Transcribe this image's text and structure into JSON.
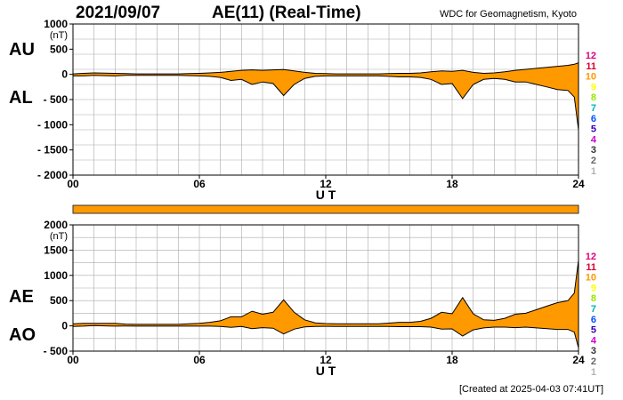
{
  "header": {
    "date": "2021/09/07",
    "title": "AE(11) (Real-Time)",
    "org": "WDC for Geomagnetism, Kyoto",
    "created": "[Created at 2025-04-03 07:41UT]"
  },
  "level_scale": {
    "labels": [
      "12",
      "11",
      "10",
      "9",
      "8",
      "7",
      "6",
      "5",
      "4",
      "3",
      "2",
      "1"
    ],
    "colors": [
      "#e0007b",
      "#d8002c",
      "#ff9900",
      "#ffff00",
      "#99e600",
      "#00b3b3",
      "#0050ff",
      "#3300b3",
      "#cc00cc",
      "#333333",
      "#666666",
      "#b3b3b3"
    ]
  },
  "colors": {
    "fill": "#ff9900",
    "line": "#000000",
    "bar": "#ff9900",
    "grid": "#aaaaaa"
  },
  "chart_data": [
    {
      "type": "area",
      "panel": "AU/AL",
      "labels": {
        "upper": "AU",
        "lower": "AL"
      },
      "ylabel_unit": "(nT)",
      "ylim": [
        -2000,
        1000
      ],
      "yticks": [
        1000,
        500,
        0,
        -500,
        -1000,
        -1500,
        -2000
      ],
      "ytick_labels": [
        "1000",
        "500",
        "0",
        "- 500",
        "- 1000",
        "- 1500",
        "- 2000"
      ],
      "xlim": [
        0,
        24
      ],
      "xticks": [
        0,
        6,
        12,
        18,
        24
      ],
      "xtick_labels": [
        "00",
        "06",
        "12",
        "18",
        "24"
      ],
      "xlabel": "U T",
      "grid": true,
      "x": [
        0,
        0.5,
        1,
        1.5,
        2,
        2.5,
        3,
        3.5,
        4,
        4.5,
        5,
        5.5,
        6,
        6.5,
        7,
        7.5,
        8,
        8.5,
        9,
        9.5,
        10,
        10.5,
        11,
        11.5,
        12,
        12.5,
        13,
        13.5,
        14,
        14.5,
        15,
        15.5,
        16,
        16.5,
        17,
        17.5,
        18,
        18.5,
        19,
        19.5,
        20,
        20.5,
        21,
        21.5,
        22,
        22.5,
        23,
        23.5,
        23.8,
        24
      ],
      "series": [
        {
          "name": "AU",
          "values": [
            10,
            20,
            30,
            25,
            20,
            15,
            10,
            10,
            10,
            10,
            10,
            15,
            20,
            30,
            40,
            60,
            80,
            90,
            80,
            90,
            95,
            70,
            40,
            20,
            15,
            10,
            10,
            10,
            10,
            10,
            15,
            20,
            20,
            30,
            50,
            70,
            60,
            80,
            40,
            20,
            30,
            50,
            80,
            100,
            120,
            140,
            160,
            180,
            200,
            230
          ]
        },
        {
          "name": "AL",
          "values": [
            -30,
            -30,
            -20,
            -25,
            -30,
            -20,
            -20,
            -20,
            -20,
            -20,
            -20,
            -25,
            -30,
            -40,
            -60,
            -120,
            -100,
            -200,
            -150,
            -180,
            -420,
            -200,
            -80,
            -40,
            -30,
            -30,
            -30,
            -30,
            -30,
            -30,
            -40,
            -50,
            -50,
            -60,
            -100,
            -200,
            -180,
            -480,
            -200,
            -100,
            -80,
            -100,
            -150,
            -150,
            -200,
            -250,
            -300,
            -320,
            -450,
            -1100
          ]
        }
      ]
    },
    {
      "type": "area",
      "panel": "AE/AO",
      "labels": {
        "upper": "AE",
        "lower": "AO"
      },
      "ylabel_unit": "(nT)",
      "ylim": [
        -500,
        2000
      ],
      "yticks": [
        2000,
        1500,
        1000,
        500,
        0,
        -500
      ],
      "ytick_labels": [
        "2000",
        "1500",
        "1000",
        "500",
        "0",
        "- 500"
      ],
      "xlim": [
        0,
        24
      ],
      "xticks": [
        0,
        6,
        12,
        18,
        24
      ],
      "xtick_labels": [
        "00",
        "06",
        "12",
        "18",
        "24"
      ],
      "xlabel": "U T",
      "grid": true,
      "x": [
        0,
        0.5,
        1,
        1.5,
        2,
        2.5,
        3,
        3.5,
        4,
        4.5,
        5,
        5.5,
        6,
        6.5,
        7,
        7.5,
        8,
        8.5,
        9,
        9.5,
        10,
        10.5,
        11,
        11.5,
        12,
        12.5,
        13,
        13.5,
        14,
        14.5,
        15,
        15.5,
        16,
        16.5,
        17,
        17.5,
        18,
        18.5,
        19,
        19.5,
        20,
        20.5,
        21,
        21.5,
        22,
        22.5,
        23,
        23.5,
        23.8,
        24
      ],
      "series": [
        {
          "name": "AE",
          "values": [
            40,
            50,
            50,
            50,
            50,
            35,
            30,
            30,
            30,
            30,
            30,
            40,
            50,
            70,
            100,
            180,
            180,
            290,
            230,
            270,
            515,
            270,
            120,
            60,
            45,
            40,
            40,
            40,
            40,
            40,
            55,
            70,
            70,
            90,
            150,
            270,
            240,
            560,
            240,
            120,
            110,
            150,
            230,
            250,
            320,
            390,
            460,
            500,
            650,
            1300
          ]
        },
        {
          "name": "AO",
          "values": [
            -10,
            -5,
            5,
            0,
            -5,
            -3,
            -5,
            -5,
            -5,
            -5,
            -5,
            -5,
            -5,
            -5,
            -10,
            -30,
            -10,
            -55,
            -35,
            -45,
            -160,
            -65,
            -20,
            -10,
            -8,
            -10,
            -10,
            -10,
            -10,
            -10,
            -12,
            -15,
            -15,
            -15,
            -25,
            -65,
            -60,
            -200,
            -80,
            -40,
            -25,
            -25,
            -35,
            -25,
            -40,
            -55,
            -70,
            -70,
            -125,
            -435
          ]
        }
      ]
    }
  ]
}
